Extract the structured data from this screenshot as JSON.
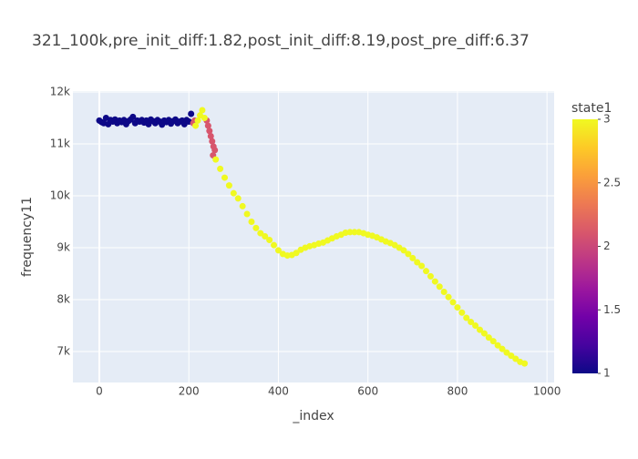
{
  "chart_data": {
    "type": "scatter",
    "title": "321_100k,pre_init_diff:1.82,post_init_diff:8.19,post_pre_diff:6.37",
    "x_label": "_index",
    "y_label": "frequency11",
    "colorbar_title": "state1",
    "colorscale": [
      "#0d0887",
      "#46039f",
      "#7201a8",
      "#9c179e",
      "#bd3786",
      "#d8576b",
      "#ed7953",
      "#fb9f3a",
      "#fdca26",
      "#f0f921"
    ],
    "clim": [
      1,
      3
    ],
    "cticks": [
      1,
      1.5,
      2,
      2.5,
      3
    ],
    "xlim": [
      -59,
      1016
    ],
    "ylim": [
      6404,
      12018
    ],
    "xticks": [
      0,
      200,
      400,
      600,
      800,
      1000
    ],
    "yticks": [
      {
        "value": 7000,
        "label": "7k"
      },
      {
        "value": 8000,
        "label": "8k"
      },
      {
        "value": 9000,
        "label": "9k"
      },
      {
        "value": 10000,
        "label": "10k"
      },
      {
        "value": 11000,
        "label": "11k"
      },
      {
        "value": 12000,
        "label": "12k"
      }
    ],
    "grid": true,
    "x": [
      0,
      5,
      10,
      15,
      20,
      25,
      30,
      35,
      40,
      45,
      50,
      55,
      60,
      65,
      70,
      75,
      80,
      85,
      90,
      95,
      100,
      105,
      110,
      115,
      120,
      125,
      130,
      135,
      140,
      145,
      150,
      155,
      160,
      165,
      170,
      175,
      180,
      185,
      190,
      195,
      200,
      205,
      210,
      213,
      240,
      243,
      246,
      249,
      252,
      255,
      258,
      254,
      215,
      220,
      225,
      230,
      235,
      260,
      270,
      280,
      290,
      300,
      310,
      320,
      330,
      340,
      350,
      360,
      370,
      380,
      390,
      400,
      410,
      420,
      430,
      440,
      450,
      460,
      470,
      480,
      490,
      500,
      510,
      520,
      530,
      540,
      550,
      560,
      570,
      580,
      590,
      600,
      610,
      620,
      630,
      640,
      650,
      660,
      670,
      680,
      690,
      700,
      710,
      720,
      730,
      740,
      750,
      760,
      770,
      780,
      790,
      800,
      810,
      820,
      830,
      840,
      850,
      860,
      870,
      880,
      890,
      900,
      910,
      920,
      930,
      940,
      950
    ],
    "values": [
      11450,
      11420,
      11400,
      11500,
      11380,
      11460,
      11430,
      11470,
      11400,
      11450,
      11420,
      11460,
      11380,
      11440,
      11470,
      11520,
      11400,
      11450,
      11430,
      11460,
      11410,
      11450,
      11380,
      11470,
      11440,
      11400,
      11460,
      11430,
      11370,
      11450,
      11420,
      11460,
      11390,
      11440,
      11470,
      11400,
      11430,
      11450,
      11380,
      11460,
      11430,
      11580,
      11400,
      11450,
      11450,
      11350,
      11250,
      11150,
      11050,
      10950,
      10880,
      10780,
      11350,
      11450,
      11550,
      11650,
      11500,
      10700,
      10520,
      10350,
      10200,
      10050,
      9950,
      9800,
      9650,
      9500,
      9380,
      9280,
      9220,
      9150,
      9050,
      8950,
      8880,
      8850,
      8860,
      8900,
      8960,
      9000,
      9030,
      9050,
      9080,
      9100,
      9140,
      9180,
      9220,
      9250,
      9290,
      9300,
      9300,
      9300,
      9280,
      9250,
      9230,
      9200,
      9160,
      9120,
      9090,
      9050,
      9000,
      8950,
      8880,
      8800,
      8720,
      8650,
      8550,
      8450,
      8350,
      8250,
      8150,
      8050,
      7950,
      7850,
      7750,
      7650,
      7570,
      7500,
      7420,
      7350,
      7270,
      7200,
      7120,
      7050,
      6980,
      6920,
      6860,
      6800,
      6770
    ],
    "color_values": [
      1,
      1,
      1,
      1,
      1,
      1,
      1,
      1,
      1,
      1,
      1,
      1,
      1,
      1,
      1,
      1,
      1,
      1,
      1,
      1,
      1,
      1,
      1,
      1,
      1,
      1,
      1,
      1,
      1,
      1,
      1,
      1,
      1,
      1,
      1,
      1,
      1,
      1,
      1,
      1,
      1,
      1,
      2.1,
      2.1,
      2.1,
      2.1,
      2.1,
      2.1,
      2.1,
      2.1,
      2.1,
      2.1,
      3,
      3,
      3,
      3,
      3,
      3,
      3,
      3,
      3,
      3,
      3,
      3,
      3,
      3,
      3,
      3,
      3,
      3,
      3,
      3,
      3,
      3,
      3,
      3,
      3,
      3,
      3,
      3,
      3,
      3,
      3,
      3,
      3,
      3,
      3,
      3,
      3,
      3,
      3,
      3,
      3,
      3,
      3,
      3,
      3,
      3,
      3,
      3,
      3,
      3,
      3,
      3,
      3,
      3,
      3,
      3,
      3,
      3,
      3,
      3,
      3,
      3,
      3,
      3,
      3,
      3,
      3,
      3,
      3,
      3,
      3,
      3,
      3,
      3,
      3
    ]
  }
}
